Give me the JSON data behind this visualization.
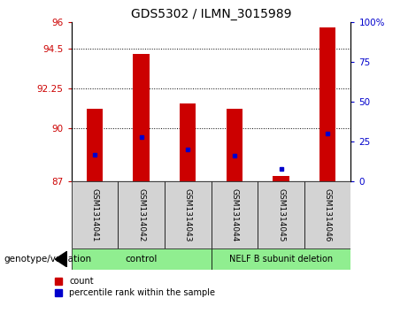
{
  "title": "GDS5302 / ILMN_3015989",
  "samples": [
    "GSM1314041",
    "GSM1314042",
    "GSM1314043",
    "GSM1314044",
    "GSM1314045",
    "GSM1314046"
  ],
  "count_values": [
    91.1,
    94.2,
    91.4,
    91.1,
    87.3,
    95.7
  ],
  "percentile_values": [
    17,
    28,
    20,
    16,
    8,
    30
  ],
  "ylim_left": [
    87,
    96
  ],
  "ylim_right": [
    0,
    100
  ],
  "yticks_left": [
    87,
    90,
    92.25,
    94.5,
    96
  ],
  "ytick_labels_left": [
    "87",
    "90",
    "92.25",
    "94.5",
    "96"
  ],
  "yticks_right": [
    0,
    25,
    50,
    75,
    100
  ],
  "ytick_labels_right": [
    "0",
    "25",
    "50",
    "75",
    "100%"
  ],
  "hlines": [
    90,
    92.25,
    94.5
  ],
  "bar_color": "#cc0000",
  "dot_color": "#0000cc",
  "bar_width": 0.35,
  "plot_bg_color": "#ffffff",
  "tick_color_left": "#cc0000",
  "tick_color_right": "#0000cc",
  "legend_count_label": "count",
  "legend_percentile_label": "percentile rank within the sample",
  "group_label": "genotype/variation",
  "group1_label": "control",
  "group2_label": "NELF B subunit deletion",
  "group_bg_color": "#90ee90",
  "sample_bg_color": "#d3d3d3"
}
